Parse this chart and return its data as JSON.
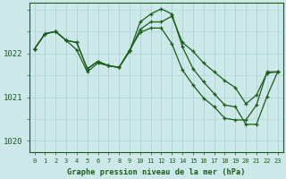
{
  "bg_color": "#cce8e8",
  "grid_color": "#aad4d4",
  "line_color": "#1a5c1a",
  "xlabel": "Graphe pression niveau de la mer (hPa)",
  "hours": [
    0,
    1,
    2,
    3,
    4,
    5,
    6,
    7,
    8,
    9,
    10,
    11,
    12,
    13,
    14,
    15,
    16,
    17,
    18,
    19,
    20,
    21,
    22,
    23
  ],
  "line1": [
    1022.1,
    1022.45,
    1022.5,
    1022.3,
    1022.25,
    1021.65,
    1021.82,
    1021.72,
    1021.68,
    1022.05,
    1022.55,
    1022.72,
    1022.72,
    1022.85,
    1022.25,
    1022.05,
    1021.78,
    1021.58,
    1021.38,
    1021.22,
    1020.85,
    1021.05,
    1021.55,
    1021.58
  ],
  "line2": [
    1022.1,
    1022.45,
    1022.5,
    1022.3,
    1022.25,
    1021.65,
    1021.82,
    1021.72,
    1021.68,
    1022.05,
    1022.72,
    1022.9,
    1023.02,
    1022.9,
    1022.15,
    1021.65,
    1021.35,
    1021.08,
    1020.82,
    1020.78,
    1020.38,
    1020.38,
    1021.02,
    1021.58
  ],
  "line3": [
    1022.1,
    1022.45,
    1022.5,
    1022.3,
    1022.08,
    1021.58,
    1021.78,
    1021.72,
    1021.68,
    1022.08,
    1022.48,
    1022.58,
    1022.58,
    1022.22,
    1021.62,
    1021.28,
    1020.98,
    1020.78,
    1020.52,
    1020.48,
    1020.48,
    1020.82,
    1021.58,
    1021.58
  ],
  "ylim": [
    1019.75,
    1023.15
  ],
  "yticks": [
    1020,
    1021,
    1022
  ],
  "ytick_labels": [
    "1020",
    "1021",
    "1022"
  ]
}
